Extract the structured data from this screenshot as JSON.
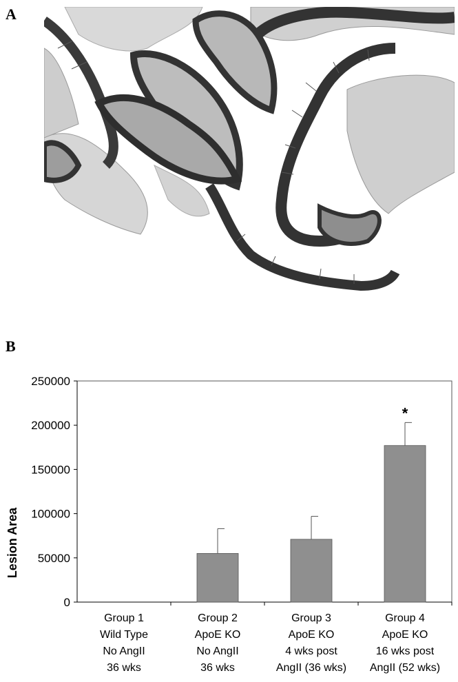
{
  "panels": {
    "a_label": "A",
    "b_label": "B"
  },
  "micrograph": {
    "kind": "histology-section",
    "stain_color": "#3a3a3a",
    "tissue_color": "#c8c8c8"
  },
  "chart_data": {
    "type": "bar",
    "ylabel": "Lesion Area",
    "ylim": [
      0,
      250000
    ],
    "yticks": [
      "0",
      "50000",
      "100000",
      "150000",
      "200000",
      "250000"
    ],
    "ytick_values": [
      0,
      50000,
      100000,
      150000,
      200000,
      250000
    ],
    "categories": [
      [
        "Group 1",
        "Wild Type",
        "No AngII",
        "36 wks"
      ],
      [
        "Group 2",
        "ApoE KO",
        "No AngII",
        "36 wks"
      ],
      [
        "Group 3",
        "ApoE KO",
        "4 wks post",
        "AngII (36 wks)"
      ],
      [
        "Group 4",
        "ApoE KO",
        "16 wks post",
        "AngII (52 wks)"
      ]
    ],
    "values": [
      0,
      55000,
      71000,
      177000
    ],
    "errors": [
      0,
      28000,
      26000,
      26000
    ],
    "annotations": [
      "",
      "",
      "",
      "*"
    ],
    "bar_color": "#8f8f8f"
  }
}
